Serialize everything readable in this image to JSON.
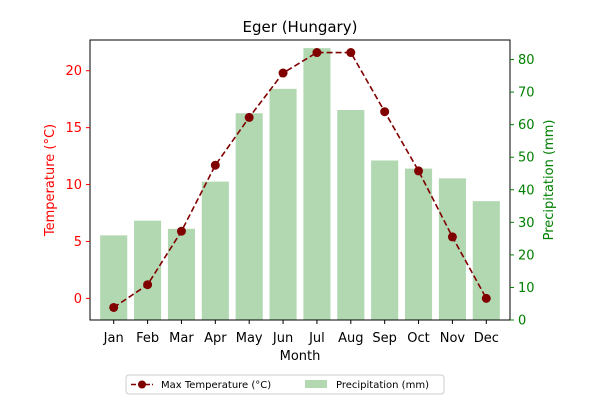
{
  "chart_data": {
    "type": "bar+line",
    "title": "Eger (Hungary)",
    "xlabel": "Month",
    "ylabel_left": "Temperature (°C)",
    "ylabel_right": "Precipitation (mm)",
    "categories": [
      "Jan",
      "Feb",
      "Mar",
      "Apr",
      "May",
      "Jun",
      "Jul",
      "Aug",
      "Sep",
      "Oct",
      "Nov",
      "Dec"
    ],
    "ylim_left": [
      -1.9,
      22.7
    ],
    "ylim_right": [
      0,
      86
    ],
    "yticks_left": [
      0,
      5,
      10,
      15,
      20
    ],
    "yticks_right": [
      0,
      10,
      20,
      30,
      40,
      50,
      60,
      70,
      80
    ],
    "series": [
      {
        "name": "Max Temperature (°C)",
        "kind": "line",
        "axis": "left",
        "color": "#800000",
        "linestyle": "dashed",
        "marker": "circle",
        "values": [
          -0.8,
          1.2,
          5.9,
          11.7,
          15.9,
          19.8,
          21.6,
          21.6,
          16.4,
          11.2,
          5.4,
          0.0
        ]
      },
      {
        "name": "Precipitation (mm)",
        "kind": "bar",
        "axis": "right",
        "color": "#b2d8b2",
        "values": [
          26,
          30.5,
          28,
          42.5,
          63.5,
          71,
          83.5,
          64.5,
          49,
          46.5,
          43.5,
          36.5
        ]
      }
    ],
    "left_axis_color": "#ff0000",
    "right_axis_color": "#008000",
    "legend_position": "bottom-center",
    "grid": false
  }
}
